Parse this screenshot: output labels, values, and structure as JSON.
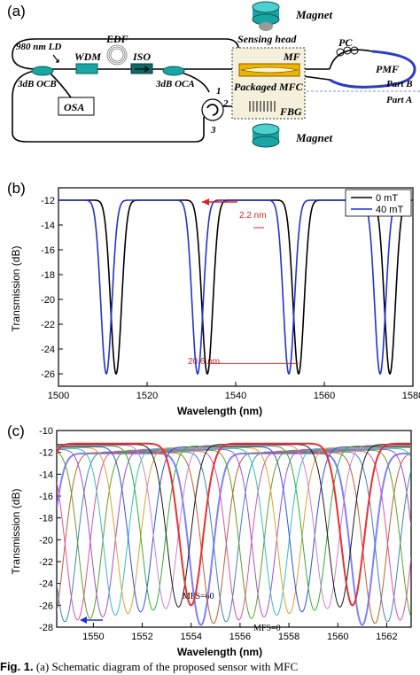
{
  "figure": {
    "panel_a": {
      "label": "(a)",
      "components": {
        "laser": "980 nm LD",
        "edf": "EDF",
        "wdm": "WDM",
        "isolator": "ISO",
        "coupler_b": "3dB OCB",
        "coupler_a": "3dB OCA",
        "osa": "OSA",
        "circulator_port_1": "1",
        "circulator_port_2": "2",
        "circulator_port_3": "3",
        "magnet_top": "Magnet",
        "magnet_bottom": "Magnet",
        "sensing_head": "Sensing head",
        "mf": "MF",
        "packaged_mfc": "Packaged MFC",
        "fbg": "FBG",
        "pc": "PC",
        "pmf": "PMF",
        "part_b": "Part B",
        "part_a": "Part A"
      },
      "colors": {
        "teal": "#1aa5a5",
        "yellow": "#f0b400",
        "blue": "#2a3cc4"
      }
    },
    "caption": {
      "label": "Fig. 1.",
      "text": "(a) Schematic diagram of the proposed sensor with MFC"
    }
  },
  "chart_data": [
    {
      "type": "line",
      "panel_label": "(b)",
      "xlabel": "Wavelength (nm)",
      "ylabel": "Transmission (dB)",
      "xlim": [
        1500,
        1580
      ],
      "ylim": [
        -27,
        -11
      ],
      "xticks": [
        "1500",
        "1520",
        "1540",
        "1560",
        "1580"
      ],
      "yticks": [
        "-12",
        "-14",
        "-16",
        "-18",
        "-20",
        "-22",
        "-24",
        "-26"
      ],
      "legend_position": "top-right",
      "series": [
        {
          "name": "0 mT",
          "color": "#000000",
          "period": 20.6,
          "minima": [
            1513.0,
            1533.6,
            1554.2,
            1574.8
          ],
          "max": -12.0,
          "min": -26.0
        },
        {
          "name": "40 mT",
          "color": "#2233cc",
          "period": 20.6,
          "minima": [
            1510.8,
            1531.4,
            1552.0,
            1572.6
          ],
          "max": -12.0,
          "min": -26.0
        }
      ],
      "annotations": [
        {
          "text": "2.2 nm",
          "color": "#e02020"
        },
        {
          "text": "20.6 nm",
          "color": "#e02020"
        }
      ]
    },
    {
      "type": "line",
      "panel_label": "(c)",
      "xlabel": "Wavelength (nm)",
      "ylabel": "Transmission (dB)",
      "xlim": [
        1548.5,
        1563
      ],
      "ylim": [
        -28,
        -10
      ],
      "xticks": [
        "1550",
        "1552",
        "1554",
        "1556",
        "1558",
        "1560",
        "1562"
      ],
      "yticks": [
        "-10",
        "-12",
        "-14",
        "-16",
        "-18",
        "-20",
        "-22",
        "-24",
        "-26",
        "-28"
      ],
      "series_count": 13,
      "period": 6.6,
      "first_min": {
        "wavelength": 1560.6,
        "depth": -26.0
      },
      "last_min": {
        "wavelength": 1554.4,
        "depth": -27.8
      },
      "series_colors": [
        "#e83030",
        "#1a1a1a",
        "#d080d0",
        "#30b030",
        "#3050e0",
        "#e0a030",
        "#30c0c0",
        "#a050d0",
        "#60a020",
        "#e050a0",
        "#4080c0",
        "#c06030",
        "#8080ff"
      ],
      "annotations": [
        {
          "text": "MFS=60"
        },
        {
          "text": "MFS=0"
        }
      ]
    }
  ]
}
